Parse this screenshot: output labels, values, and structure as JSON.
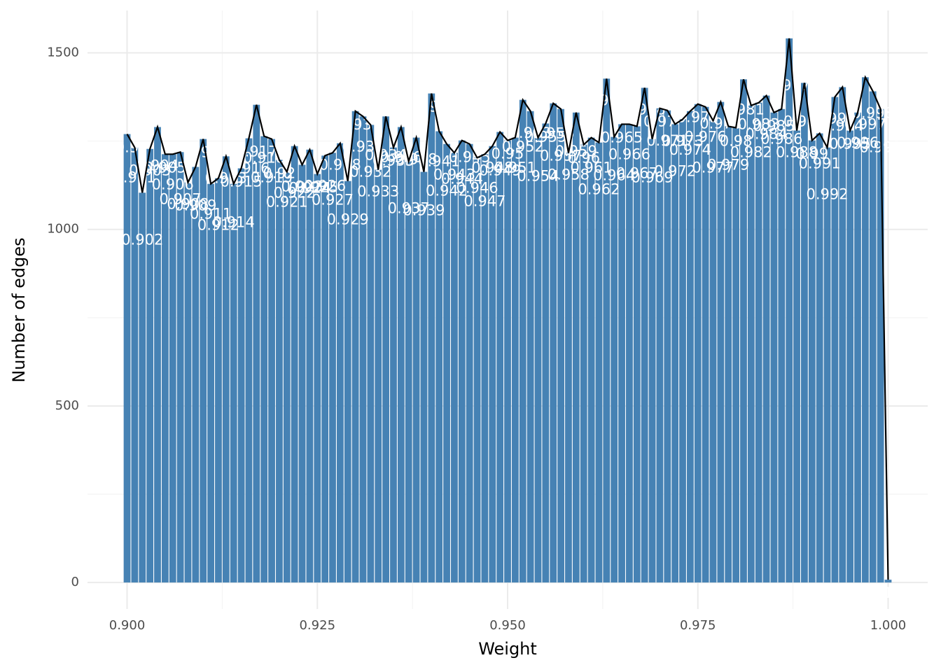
{
  "chart_data": {
    "type": "bar",
    "x": [
      0.9,
      0.901,
      0.902,
      0.903,
      0.904,
      0.905,
      0.906,
      0.907,
      0.908,
      0.909,
      0.91,
      0.911,
      0.912,
      0.913,
      0.914,
      0.915,
      0.916,
      0.917,
      0.918,
      0.919,
      0.92,
      0.921,
      0.922,
      0.923,
      0.924,
      0.925,
      0.926,
      0.927,
      0.928,
      0.929,
      0.93,
      0.931,
      0.932,
      0.933,
      0.934,
      0.935,
      0.936,
      0.937,
      0.938,
      0.939,
      0.94,
      0.941,
      0.942,
      0.943,
      0.944,
      0.945,
      0.946,
      0.947,
      0.948,
      0.949,
      0.95,
      0.951,
      0.952,
      0.953,
      0.954,
      0.955,
      0.956,
      0.957,
      0.958,
      0.959,
      0.96,
      0.961,
      0.962,
      0.963,
      0.964,
      0.965,
      0.966,
      0.967,
      0.968,
      0.969,
      0.97,
      0.971,
      0.972,
      0.973,
      0.974,
      0.975,
      0.976,
      0.977,
      0.978,
      0.979,
      0.98,
      0.981,
      0.982,
      0.983,
      0.984,
      0.985,
      0.986,
      0.987,
      0.988,
      0.989,
      0.99,
      0.991,
      0.992,
      0.993,
      0.994,
      0.995,
      0.996,
      0.997,
      0.998,
      0.999,
      1
    ],
    "values": [
      1270,
      1232,
      1104,
      1228,
      1290,
      1213,
      1213,
      1219,
      1133,
      1177,
      1256,
      1129,
      1145,
      1207,
      1129,
      1173,
      1258,
      1353,
      1264,
      1256,
      1197,
      1163,
      1236,
      1183,
      1226,
      1157,
      1209,
      1217,
      1244,
      1137,
      1335,
      1320,
      1296,
      1169,
      1320,
      1232,
      1290,
      1193,
      1260,
      1163,
      1385,
      1278,
      1242,
      1217,
      1252,
      1242,
      1203,
      1213,
      1236,
      1276,
      1252,
      1260,
      1367,
      1335,
      1260,
      1300,
      1357,
      1341,
      1217,
      1331,
      1240,
      1260,
      1246,
      1427,
      1262,
      1298,
      1298,
      1292,
      1401,
      1256,
      1343,
      1337,
      1298,
      1312,
      1335,
      1355,
      1347,
      1308,
      1361,
      1292,
      1288,
      1425,
      1351,
      1359,
      1379,
      1331,
      1341,
      1541,
      1280,
      1415,
      1252,
      1272,
      1232,
      1375,
      1403,
      1280,
      1331,
      1431,
      1391,
      1341,
      8
    ],
    "color": "#4682b4",
    "line_color": "#000000",
    "xlabel": "Weight",
    "ylabel": "Number of edges",
    "xlim": [
      0.8948,
      1.0052
    ],
    "ylim": [
      -75,
      1620
    ],
    "xticks": [
      {
        "value": 0.9,
        "label": "0.900"
      },
      0.925,
      {
        "value": 0.95,
        "label": "0.950"
      },
      0.975,
      {
        "value": 1,
        "label": "1.000"
      }
    ],
    "yticks": [
      0,
      500,
      1000,
      1500
    ],
    "grid": true
  }
}
